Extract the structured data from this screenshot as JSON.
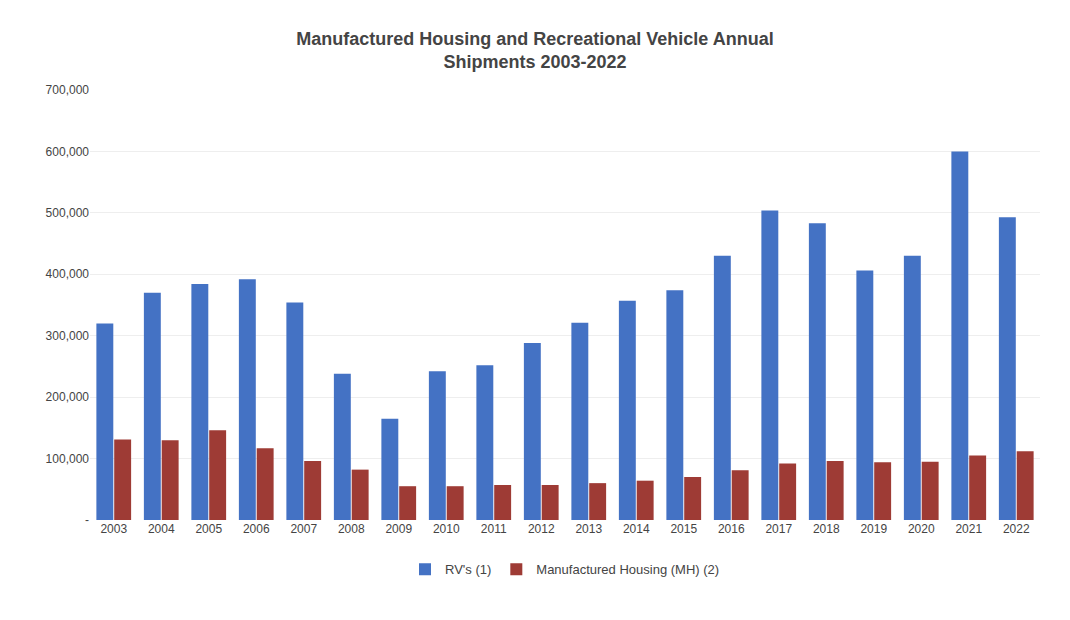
{
  "chart_data": {
    "type": "bar",
    "title": "Manufactured Housing and Recreational Vehicle Annual\nShipments 2003-2022",
    "categories": [
      "2003",
      "2004",
      "2005",
      "2006",
      "2007",
      "2008",
      "2009",
      "2010",
      "2011",
      "2012",
      "2013",
      "2014",
      "2015",
      "2016",
      "2017",
      "2018",
      "2019",
      "2020",
      "2021",
      "2022"
    ],
    "series": [
      {
        "name": "RV's (1)",
        "color": "#4472C4",
        "values": [
          320000,
          370000,
          384000,
          392000,
          354000,
          238000,
          165000,
          242000,
          252000,
          288000,
          321000,
          357000,
          374000,
          430000,
          504000,
          483000,
          406000,
          430000,
          600000,
          493000
        ]
      },
      {
        "name": "Manufactured Housing (MH) (2)",
        "color": "#9E3B35",
        "values": [
          131000,
          130000,
          146000,
          117000,
          96000,
          82000,
          55000,
          55000,
          57000,
          57000,
          60000,
          64000,
          70000,
          81000,
          92000,
          96000,
          94000,
          95000,
          105000,
          112000
        ]
      }
    ],
    "ylim": [
      0,
      700000
    ],
    "yticks": [
      {
        "value": 0,
        "label": "-"
      },
      {
        "value": 100000,
        "label": "100,000"
      },
      {
        "value": 200000,
        "label": "200,000"
      },
      {
        "value": 300000,
        "label": "300,000"
      },
      {
        "value": 400000,
        "label": "400,000"
      },
      {
        "value": 500000,
        "label": "500,000"
      },
      {
        "value": 600000,
        "label": "600,000"
      },
      {
        "value": 700000,
        "label": "700,000"
      }
    ],
    "grid": true,
    "legend": "bottom"
  }
}
